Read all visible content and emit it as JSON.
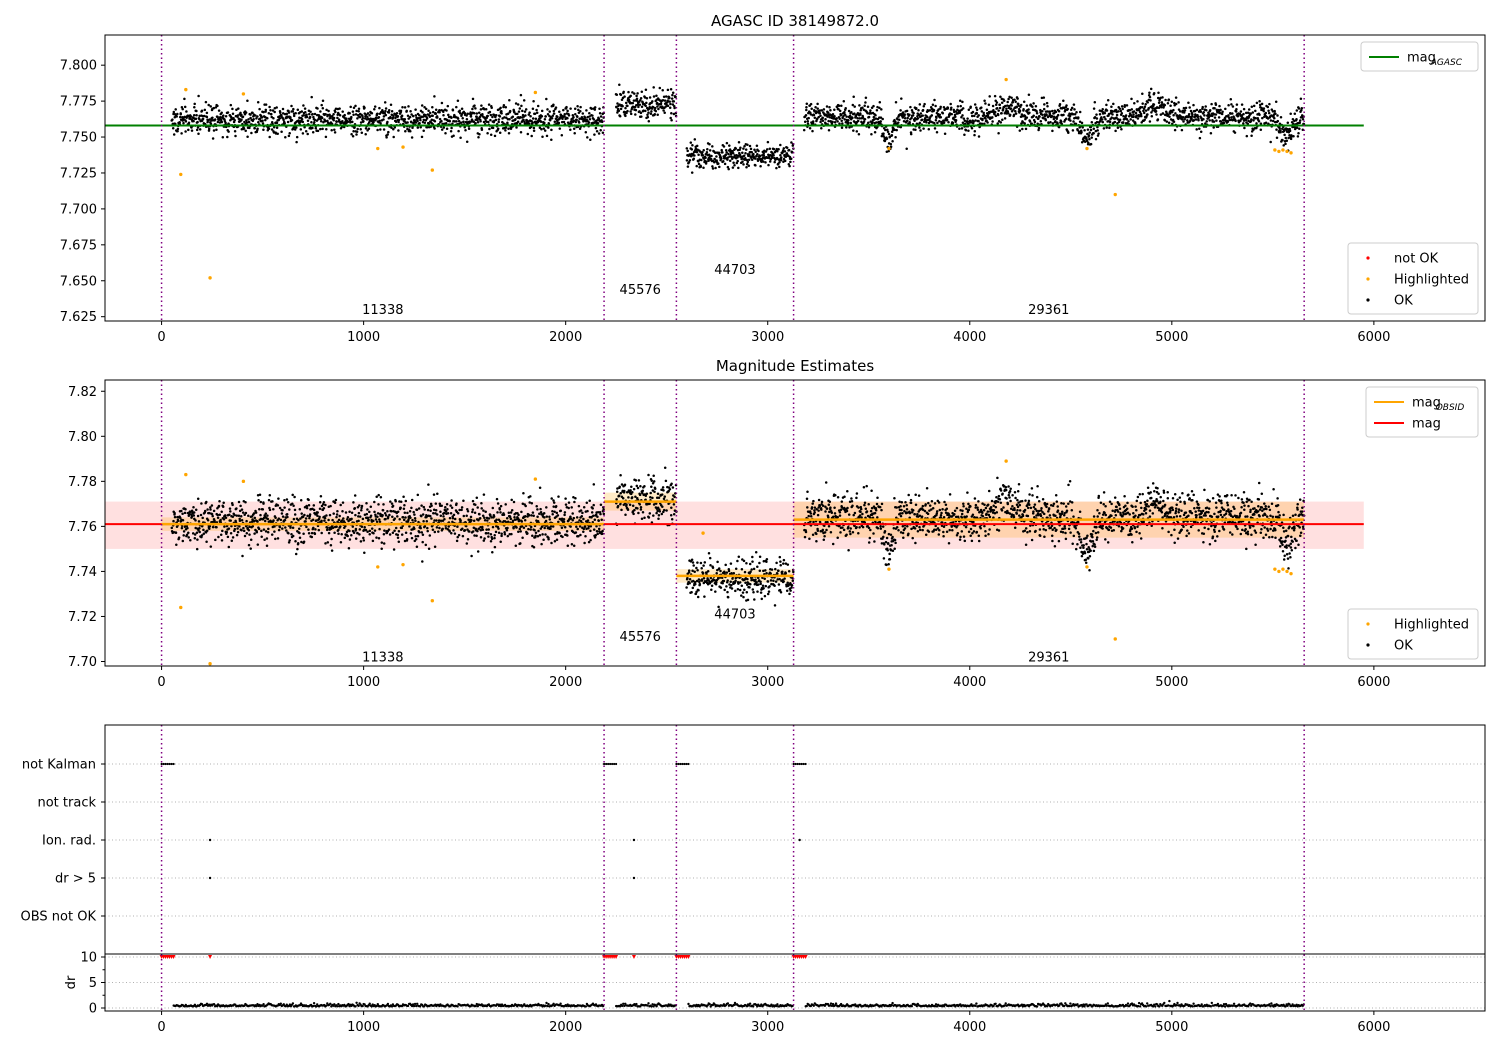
{
  "chart_data": [
    {
      "type": "scatter",
      "title": "AGASC ID 38149872.0",
      "xlim": [
        -280,
        6550
      ],
      "ylim": [
        7.622,
        7.821
      ],
      "xticks": [
        0,
        1000,
        2000,
        3000,
        4000,
        5000,
        6000
      ],
      "yticks": [
        "7.625",
        "7.650",
        "7.675",
        "7.700",
        "7.725",
        "7.750",
        "7.775",
        "7.800"
      ],
      "boundaries": [
        0,
        2190,
        2548,
        3128,
        5655
      ],
      "obsid_labels": [
        {
          "x": 1095,
          "y": 7.63,
          "text": "11338"
        },
        {
          "x": 2369,
          "y": 7.644,
          "text": "45576"
        },
        {
          "x": 2838,
          "y": 7.658,
          "text": "44703"
        },
        {
          "x": 4391,
          "y": 7.63,
          "text": "29361"
        }
      ],
      "segments": [
        {
          "x0": 50,
          "x1": 2190,
          "center": 7.762,
          "spread": 0.005,
          "excursions": []
        },
        {
          "x0": 2248,
          "x1": 2548,
          "center": 7.773,
          "spread": 0.005,
          "excursions": []
        },
        {
          "x0": 2598,
          "x1": 3128,
          "center": 7.737,
          "spread": 0.004,
          "excursions": []
        },
        {
          "x0": 3180,
          "x1": 5655,
          "center": 7.764,
          "spread": 0.005,
          "excursions": [
            {
              "x": 3600,
              "width": 45,
              "depth": -0.015
            },
            {
              "x": 4580,
              "width": 60,
              "depth": -0.015
            },
            {
              "x": 5570,
              "width": 60,
              "depth": -0.013
            },
            {
              "x": 4180,
              "width": 90,
              "depth": 0.008
            },
            {
              "x": 4920,
              "width": 90,
              "depth": 0.007
            }
          ]
        }
      ],
      "highlighted": [
        [
          95,
          7.724
        ],
        [
          120,
          7.783
        ],
        [
          240,
          7.652
        ],
        [
          405,
          7.78
        ],
        [
          1070,
          7.742
        ],
        [
          1195,
          7.743
        ],
        [
          1340,
          7.727
        ],
        [
          1850,
          7.781
        ],
        [
          3600,
          7.742
        ],
        [
          4180,
          7.79
        ],
        [
          4580,
          7.742
        ],
        [
          4720,
          7.71
        ],
        [
          5510,
          7.741
        ],
        [
          5530,
          7.74
        ],
        [
          5550,
          7.741
        ],
        [
          5570,
          7.74
        ],
        [
          5590,
          7.739
        ]
      ],
      "ref_lines": [
        {
          "name": "mag",
          "name_sub": "AGASC",
          "y": 7.758,
          "x0": -280,
          "x1": 5950,
          "color": "#008000"
        }
      ],
      "legends": [
        {
          "position": "top-right",
          "entries": [
            {
              "label": "mag",
              "sub": "AGASC",
              "kind": "line",
              "color": "#008000"
            }
          ]
        },
        {
          "position": "lower-right",
          "entries": [
            {
              "label": "not OK",
              "kind": "dot",
              "color": "#ff0000"
            },
            {
              "label": "Highlighted",
              "kind": "dot",
              "color": "#ffa500"
            },
            {
              "label": "OK",
              "kind": "dot",
              "color": "#000000"
            }
          ]
        }
      ]
    },
    {
      "type": "scatter",
      "title": "Magnitude Estimates",
      "xlim": [
        -280,
        6550
      ],
      "ylim": [
        7.698,
        7.825
      ],
      "xticks": [
        0,
        1000,
        2000,
        3000,
        4000,
        5000,
        6000
      ],
      "yticks": [
        "7.70",
        "7.72",
        "7.74",
        "7.76",
        "7.78",
        "7.80",
        "7.82"
      ],
      "boundaries": [
        0,
        2190,
        2548,
        3128,
        5655
      ],
      "obsid_labels": [
        {
          "x": 1095,
          "y": 7.702,
          "text": "11338"
        },
        {
          "x": 2369,
          "y": 7.711,
          "text": "45576"
        },
        {
          "x": 2838,
          "y": 7.721,
          "text": "44703"
        },
        {
          "x": 4391,
          "y": 7.702,
          "text": "29361"
        }
      ],
      "mag_band": {
        "y0": 7.75,
        "y1": 7.771,
        "x0": -280,
        "x1": 5950,
        "color": "#ffcccc"
      },
      "obsid_bands": [
        {
          "x0": 0,
          "x1": 2190,
          "y": 7.761,
          "y0": 7.758,
          "y1": 7.764
        },
        {
          "x0": 2190,
          "x1": 2548,
          "y": 7.771,
          "y0": 7.767,
          "y1": 7.775
        },
        {
          "x0": 2548,
          "x1": 3128,
          "y": 7.738,
          "y0": 7.735,
          "y1": 7.741
        },
        {
          "x0": 3128,
          "x1": 5655,
          "y": 7.763,
          "y0": 7.755,
          "y1": 7.771
        }
      ],
      "segments": [
        {
          "x0": 50,
          "x1": 2190,
          "center": 7.762,
          "spread": 0.005,
          "excursions": []
        },
        {
          "x0": 2248,
          "x1": 2548,
          "center": 7.773,
          "spread": 0.005,
          "excursions": []
        },
        {
          "x0": 2598,
          "x1": 3128,
          "center": 7.737,
          "spread": 0.004,
          "excursions": []
        },
        {
          "x0": 3180,
          "x1": 5655,
          "center": 7.764,
          "spread": 0.005,
          "excursions": [
            {
              "x": 3600,
              "width": 45,
              "depth": -0.015
            },
            {
              "x": 4580,
              "width": 60,
              "depth": -0.015
            },
            {
              "x": 5570,
              "width": 60,
              "depth": -0.013
            },
            {
              "x": 4180,
              "width": 90,
              "depth": 0.008
            },
            {
              "x": 4920,
              "width": 90,
              "depth": 0.007
            }
          ]
        }
      ],
      "highlighted": [
        [
          95,
          7.724
        ],
        [
          120,
          7.783
        ],
        [
          240,
          7.699
        ],
        [
          405,
          7.78
        ],
        [
          1070,
          7.742
        ],
        [
          1195,
          7.743
        ],
        [
          1340,
          7.727
        ],
        [
          1850,
          7.781
        ],
        [
          2680,
          7.757
        ],
        [
          3600,
          7.741
        ],
        [
          4180,
          7.789
        ],
        [
          4580,
          7.742
        ],
        [
          4720,
          7.71
        ],
        [
          5510,
          7.741
        ],
        [
          5530,
          7.74
        ],
        [
          5550,
          7.741
        ],
        [
          5570,
          7.74
        ],
        [
          5590,
          7.739
        ]
      ],
      "ref_lines": [
        {
          "name": "mag",
          "y": 7.761,
          "x0": -280,
          "x1": 5950,
          "color": "#ff0000"
        }
      ],
      "legends": [
        {
          "position": "top-right",
          "entries": [
            {
              "label": "mag",
              "sub": "OBSID",
              "kind": "line",
              "color": "#ffa500"
            },
            {
              "label": "mag",
              "kind": "line",
              "color": "#ff0000"
            }
          ]
        },
        {
          "position": "lower-right",
          "entries": [
            {
              "label": "Highlighted",
              "kind": "dot",
              "color": "#ffa500"
            },
            {
              "label": "OK",
              "kind": "dot",
              "color": "#000000"
            }
          ]
        }
      ]
    },
    {
      "type": "scatter",
      "xlim": [
        -280,
        6550
      ],
      "xticks": [
        0,
        1000,
        2000,
        3000,
        4000,
        5000,
        6000
      ],
      "boundaries": [
        0,
        2190,
        2548,
        3128,
        5655
      ],
      "flag_rows": [
        {
          "label": "not Kalman",
          "events": [
            [
              0,
              60
            ],
            [
              2190,
              2250
            ],
            [
              2548,
              2608
            ],
            [
              3128,
              3188
            ]
          ]
        },
        {
          "label": "not track",
          "events": []
        },
        {
          "label": "Ion. rad.",
          "events": [
            [
              240,
              240
            ],
            [
              2338,
              2338
            ],
            [
              3158,
              3158
            ]
          ]
        },
        {
          "label": "dr > 5",
          "events": [
            [
              240,
              240
            ],
            [
              2338,
              2338
            ]
          ]
        },
        {
          "label": "OBS not OK",
          "events": []
        }
      ],
      "dr": {
        "ylabel": "dr",
        "ylim": [
          0,
          10
        ],
        "yticks": [
          "0",
          "5",
          "10"
        ],
        "saturated": [
          [
            0,
            60
          ],
          [
            2190,
            2250
          ],
          [
            2548,
            2608
          ],
          [
            3128,
            3188
          ]
        ],
        "isolated": [
          240,
          2338
        ],
        "base": 0.3
      }
    }
  ]
}
